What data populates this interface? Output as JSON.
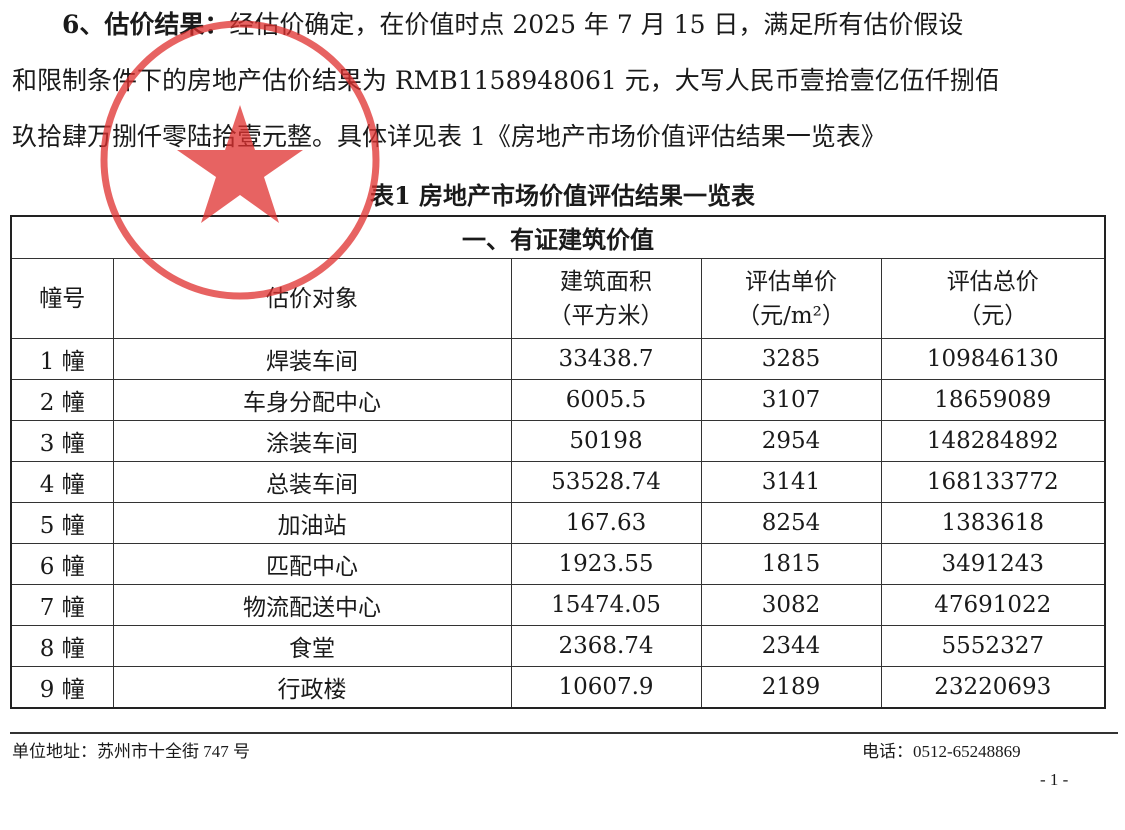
{
  "paragraph": {
    "lead": "6、估价结果：",
    "line1": "经估价确定，在价值时点 2025 年 7 月 15 日，满足所有估价假设",
    "line2": "和限制条件下的房地产估价结果为 RMB1158948061 元，大写人民币壹拾壹亿伍仟捌佰",
    "line3": "玖拾肆万捌仟零陆拾壹元整。具体详见表 1《房地产市场价值评估结果一览表》"
  },
  "table": {
    "title": "表1 房地产市场价值评估结果一览表",
    "section": "一、有证建筑价值",
    "headers": [
      "幢号",
      "估价对象",
      "建筑面积\n（平方米）",
      "评估单价\n（元/m²）",
      "评估总价\n（元）"
    ],
    "rows": [
      [
        "1 幢",
        "焊装车间",
        "33438.7",
        "3285",
        "109846130"
      ],
      [
        "2 幢",
        "车身分配中心",
        "6005.5",
        "3107",
        "18659089"
      ],
      [
        "3 幢",
        "涂装车间",
        "50198",
        "2954",
        "148284892"
      ],
      [
        "4 幢",
        "总装车间",
        "53528.74",
        "3141",
        "168133772"
      ],
      [
        "5 幢",
        "加油站",
        "167.63",
        "8254",
        "1383618"
      ],
      [
        "6 幢",
        "匹配中心",
        "1923.55",
        "1815",
        "3491243"
      ],
      [
        "7 幢",
        "物流配送中心",
        "15474.05",
        "3082",
        "47691022"
      ],
      [
        "8 幢",
        "食堂",
        "2368.74",
        "2344",
        "5552327"
      ],
      [
        "9 幢",
        "行政楼",
        "10607.9",
        "2189",
        "23220693"
      ]
    ]
  },
  "footer": {
    "address": "单位地址：苏州市十全街 747 号",
    "phone": "电话：0512-65248869",
    "page": "- 1 -"
  },
  "stamp": {
    "color": "#e0302e",
    "icon": "red-star-seal"
  }
}
